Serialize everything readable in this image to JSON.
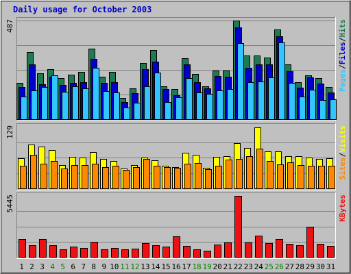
{
  "chart_data": {
    "type": "bar",
    "title": "Daily usage for October 2003",
    "categories": [
      "1",
      "2",
      "3",
      "4",
      "5",
      "6",
      "7",
      "8",
      "9",
      "10",
      "11",
      "12",
      "13",
      "14",
      "15",
      "16",
      "17",
      "18",
      "19",
      "20",
      "21",
      "22",
      "23",
      "24",
      "25",
      "26",
      "27",
      "28",
      "29",
      "30",
      "31"
    ],
    "weekend_days": [
      "4",
      "5",
      "11",
      "12",
      "18",
      "19",
      "25",
      "26"
    ],
    "panels": [
      {
        "name": "hits-files-pages",
        "ymax_label": "487",
        "ylim": [
          0,
          487
        ],
        "side_label": [
          "Pages",
          "Files",
          "Hits"
        ],
        "series": [
          {
            "name": "Hits",
            "color": "#1e7a50",
            "values": [
              180,
              332,
              225,
              246,
              203,
              221,
              232,
              349,
              211,
              232,
              105,
              151,
              279,
              343,
              164,
              149,
              302,
              224,
              162,
              240,
              240,
              487,
              315,
              314,
              305,
              444,
              270,
              181,
              215,
              203,
              158
            ]
          },
          {
            "name": "Files",
            "color": "#0000cc",
            "values": [
              160,
              271,
              174,
              211,
              170,
              179,
              184,
              297,
              179,
              183,
              84,
              129,
              248,
              285,
              149,
              120,
              270,
              183,
              153,
              213,
              211,
              454,
              254,
              271,
              270,
              409,
              236,
              155,
              207,
              175,
              133
            ]
          },
          {
            "name": "Pages",
            "color": "#33c5ff",
            "values": [
              110,
              143,
              158,
              218,
              134,
              161,
              153,
              254,
              138,
              133,
              56,
              82,
              161,
              231,
              85,
              109,
              203,
              133,
              124,
              143,
              149,
              375,
              184,
              185,
              205,
              379,
              179,
              111,
              147,
              95,
              98
            ]
          }
        ]
      },
      {
        "name": "visits-sites",
        "ymax_label": "129",
        "ylim": [
          0,
          129
        ],
        "side_label": [
          "Sites",
          "Visits"
        ],
        "series": [
          {
            "name": "Visits",
            "color": "#ffff00",
            "values": [
              63,
              92,
              87,
              80,
              49,
              66,
              65,
              76,
              62,
              57,
              41,
              49,
              65,
              59,
              47,
              45,
              74,
              70,
              43,
              66,
              68,
              95,
              84,
              128,
              78,
              78,
              67,
              67,
              65,
              61,
              63
            ]
          },
          {
            "name": "Sites",
            "color": "#ff8800",
            "values": [
              48,
              70,
              52,
              58,
              42,
              49,
              49,
              51,
              45,
              48,
              39,
              45,
              61,
              47,
              45,
              43,
              51,
              53,
              40,
              48,
              60,
              62,
              68,
              83,
              58,
              50,
              54,
              49,
              48,
              47,
              48
            ]
          }
        ]
      },
      {
        "name": "kbytes",
        "ymax_label": "5445",
        "ylim": [
          0,
          5445
        ],
        "side_label": [
          "KBytes"
        ],
        "series": [
          {
            "name": "KBytes",
            "color": "#ee1111",
            "values": [
              1600,
              1030,
              1566,
              1065,
              695,
              925,
              785,
              1355,
              703,
              816,
              656,
              719,
              1220,
              1019,
              891,
              1857,
              978,
              700,
              546,
              1081,
              1298,
              5445,
              1298,
              1880,
              1224,
              1579,
              1169,
              1038,
              2677,
              1135,
              953
            ]
          }
        ]
      }
    ]
  },
  "colors": {
    "title": "#0000cc",
    "weekday_label": "#000000",
    "weekend_label": "#008000",
    "panel_bg": "#c0c0c0",
    "grid": "#808080"
  }
}
